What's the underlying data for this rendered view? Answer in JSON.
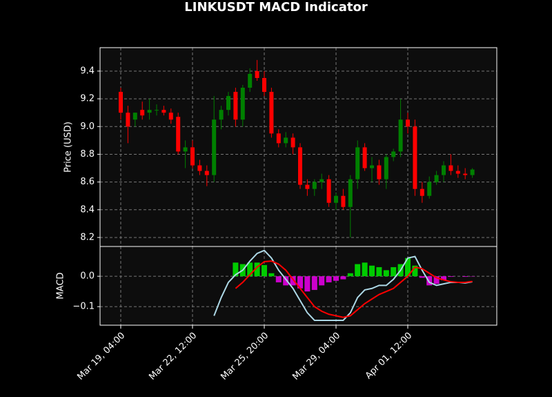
{
  "chart_data": [
    {
      "type": "candlestick",
      "title": "LINKUSDT MACD Indicator",
      "ylabel": "Price (USD)",
      "x": [
        "Mar 19, 04:00",
        "Mar 19, 12:00",
        "Mar 19, 20:00",
        "Mar 20, 04:00",
        "Mar 20, 12:00",
        "Mar 20, 20:00",
        "Mar 21, 04:00",
        "Mar 21, 12:00",
        "Mar 21, 20:00",
        "Mar 22, 04:00",
        "Mar 22, 12:00",
        "Mar 22, 20:00",
        "Mar 23, 04:00",
        "Mar 23, 12:00",
        "Mar 23, 20:00",
        "Mar 24, 04:00",
        "Mar 24, 12:00",
        "Mar 24, 20:00",
        "Mar 25, 04:00",
        "Mar 25, 12:00",
        "Mar 25, 20:00",
        "Mar 26, 04:00",
        "Mar 26, 12:00",
        "Mar 26, 20:00",
        "Mar 27, 04:00",
        "Mar 27, 12:00",
        "Mar 27, 20:00",
        "Mar 28, 04:00",
        "Mar 28, 12:00",
        "Mar 28, 20:00",
        "Mar 29, 04:00",
        "Mar 29, 12:00",
        "Mar 29, 20:00",
        "Mar 30, 04:00",
        "Mar 30, 12:00",
        "Mar 30, 20:00",
        "Mar 31, 04:00",
        "Mar 31, 12:00",
        "Mar 31, 20:00",
        "Apr 01, 04:00",
        "Apr 01, 12:00",
        "Apr 01, 20:00",
        "Apr 02, 04:00",
        "Apr 02, 12:00",
        "Apr 02, 20:00",
        "Apr 03, 04:00",
        "Apr 03, 12:00",
        "Apr 03, 20:00",
        "Apr 04, 04:00",
        "Apr 04, 12:00"
      ],
      "open": [
        9.25,
        9.1,
        9.05,
        9.12,
        9.1,
        9.12,
        9.12,
        9.1,
        9.07,
        8.82,
        8.85,
        8.72,
        8.68,
        8.65,
        9.05,
        9.12,
        9.25,
        9.05,
        9.28,
        9.4,
        9.35,
        9.25,
        8.95,
        8.88,
        8.92,
        8.85,
        8.58,
        8.55,
        8.6,
        8.62,
        8.45,
        8.5,
        8.42,
        8.62,
        8.85,
        8.7,
        8.72,
        8.62,
        8.78,
        8.82,
        9.05,
        9.0,
        8.55,
        8.5,
        8.6,
        8.65,
        8.72,
        8.68,
        8.66,
        8.65
      ],
      "high": [
        9.28,
        9.15,
        9.1,
        9.18,
        9.2,
        9.16,
        9.15,
        9.13,
        9.1,
        8.9,
        8.9,
        8.76,
        8.72,
        9.22,
        9.15,
        9.25,
        9.28,
        9.3,
        9.42,
        9.48,
        9.4,
        9.28,
        8.98,
        8.96,
        8.95,
        8.88,
        8.62,
        8.62,
        8.66,
        8.65,
        8.52,
        8.55,
        8.65,
        8.9,
        8.88,
        8.78,
        8.76,
        8.8,
        8.84,
        9.2,
        9.1,
        9.05,
        8.6,
        8.64,
        8.68,
        8.75,
        8.8,
        8.72,
        8.7,
        8.7
      ],
      "low": [
        9.05,
        8.88,
        9.0,
        9.05,
        9.05,
        9.08,
        9.08,
        9.02,
        8.8,
        8.7,
        8.7,
        8.65,
        8.57,
        8.6,
        8.98,
        9.08,
        9.0,
        9.0,
        9.25,
        9.33,
        9.22,
        8.92,
        8.85,
        8.85,
        8.8,
        8.55,
        8.5,
        8.5,
        8.55,
        8.42,
        8.4,
        8.4,
        8.2,
        8.55,
        8.68,
        8.6,
        8.58,
        8.55,
        8.75,
        8.78,
        8.95,
        8.5,
        8.45,
        8.48,
        8.58,
        8.6,
        8.65,
        8.63,
        8.62,
        8.63
      ],
      "close": [
        9.1,
        9.0,
        9.1,
        9.08,
        9.12,
        9.12,
        9.1,
        9.05,
        8.82,
        8.85,
        8.72,
        8.68,
        8.65,
        9.05,
        9.12,
        9.22,
        9.05,
        9.28,
        9.38,
        9.35,
        9.25,
        8.95,
        8.88,
        8.92,
        8.85,
        8.58,
        8.55,
        8.6,
        8.62,
        8.45,
        8.5,
        8.42,
        8.62,
        8.85,
        8.7,
        8.72,
        8.62,
        8.78,
        8.82,
        9.05,
        9.0,
        8.55,
        8.5,
        8.6,
        8.65,
        8.72,
        8.68,
        8.66,
        8.65,
        8.69
      ],
      "up_color": "#008000",
      "down_color": "#ff0000",
      "ylim": [
        8.135,
        9.569
      ],
      "yticks": [
        8.2,
        8.4,
        8.6,
        8.8,
        {
          "value": 9,
          "label": "9.0"
        },
        9.2,
        9.4
      ],
      "xticks": [
        "Mar 19, 04:00",
        "Mar 22, 12:00",
        "Mar 25, 20:00",
        "Mar 29, 04:00",
        "Apr 01, 12:00"
      ],
      "grid": true
    },
    {
      "type": "macd",
      "ylabel": "MACD",
      "macd": {
        "color": "#add8e6",
        "values": [
          null,
          null,
          null,
          null,
          null,
          null,
          null,
          null,
          null,
          null,
          null,
          null,
          null,
          -0.13,
          -0.07,
          -0.02,
          0.005,
          0.02,
          0.05,
          0.075,
          0.085,
          0.06,
          0.02,
          -0.01,
          -0.04,
          -0.08,
          -0.12,
          -0.145,
          -0.145,
          -0.145,
          -0.145,
          -0.145,
          -0.12,
          -0.07,
          -0.045,
          -0.04,
          -0.03,
          -0.03,
          -0.01,
          0.02,
          0.06,
          0.065,
          0.02,
          -0.02,
          -0.03,
          -0.025,
          -0.02,
          -0.02,
          -0.022,
          -0.018
        ]
      },
      "signal": {
        "color": "#ff0000",
        "values": [
          null,
          null,
          null,
          null,
          null,
          null,
          null,
          null,
          null,
          null,
          null,
          null,
          null,
          null,
          null,
          null,
          -0.04,
          -0.02,
          0.005,
          0.03,
          0.048,
          0.05,
          0.04,
          0.02,
          -0.01,
          -0.04,
          -0.07,
          -0.1,
          -0.115,
          -0.125,
          -0.13,
          -0.135,
          -0.13,
          -0.11,
          -0.09,
          -0.075,
          -0.06,
          -0.05,
          -0.04,
          -0.02,
          0.0,
          0.03,
          0.025,
          0.01,
          -0.005,
          -0.012,
          -0.018,
          -0.02,
          -0.02,
          -0.017
        ]
      },
      "histogram": {
        "up_color": "#00cc00",
        "down_color": "#cc00cc",
        "values": [
          null,
          null,
          null,
          null,
          null,
          null,
          null,
          null,
          null,
          null,
          null,
          null,
          null,
          null,
          null,
          null,
          0.045,
          0.04,
          0.045,
          0.045,
          0.037,
          0.01,
          -0.02,
          -0.03,
          -0.03,
          -0.04,
          -0.05,
          -0.045,
          -0.03,
          -0.02,
          -0.015,
          -0.01,
          0.01,
          0.04,
          0.045,
          0.035,
          0.03,
          0.02,
          0.03,
          0.04,
          0.06,
          0.035,
          -0.005,
          -0.03,
          -0.025,
          -0.013,
          -0.002,
          0,
          -0.002,
          -0.001
        ]
      },
      "ylim": [
        -0.161,
        0.098
      ],
      "yticks": [
        {
          "value": -0.1,
          "label": "−0.1"
        },
        {
          "value": 0,
          "label": "0.0"
        }
      ],
      "grid": true
    }
  ]
}
